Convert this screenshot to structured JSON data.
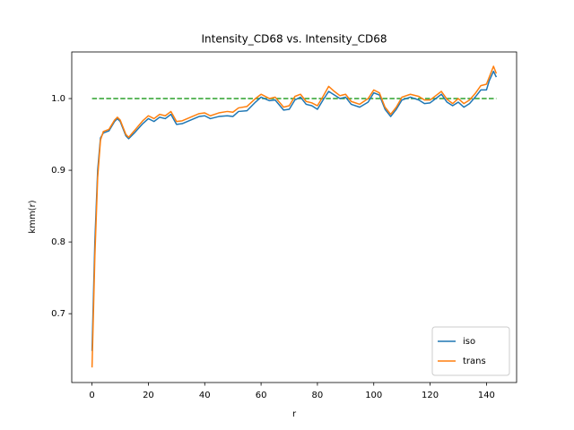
{
  "chart_data": {
    "type": "line",
    "title": "Intensity_CD68 vs. Intensity_CD68",
    "x_label": "r",
    "y_label": "kmm(r)",
    "x": [
      0,
      1,
      2,
      3,
      4,
      6,
      8,
      9,
      10,
      12,
      13,
      15,
      18,
      20,
      22,
      24,
      26,
      28,
      30,
      32,
      35,
      38,
      40,
      42,
      45,
      48,
      50,
      52,
      55,
      58,
      60,
      63,
      65,
      68,
      70,
      72,
      74,
      76,
      78,
      80,
      82,
      84,
      86,
      88,
      90,
      92,
      95,
      98,
      100,
      102,
      104,
      106,
      108,
      110,
      113,
      116,
      118,
      120,
      122,
      124,
      126,
      128,
      130,
      132,
      134,
      136,
      138,
      140,
      141,
      142.5,
      143.5
    ],
    "series": [
      {
        "name": "iso",
        "color": "#1f77b4",
        "values": [
          0.648,
          0.8,
          0.9,
          0.945,
          0.952,
          0.955,
          0.968,
          0.972,
          0.968,
          0.948,
          0.944,
          0.952,
          0.965,
          0.972,
          0.968,
          0.974,
          0.972,
          0.978,
          0.964,
          0.965,
          0.97,
          0.975,
          0.976,
          0.972,
          0.975,
          0.976,
          0.975,
          0.982,
          0.983,
          0.995,
          1.002,
          0.997,
          0.998,
          0.984,
          0.985,
          0.998,
          1.002,
          0.992,
          0.99,
          0.985,
          0.998,
          1.01,
          1.005,
          1.0,
          1.002,
          0.992,
          0.988,
          0.995,
          1.008,
          1.005,
          0.985,
          0.975,
          0.985,
          0.998,
          1.002,
          0.998,
          0.993,
          0.994,
          1.0,
          1.006,
          0.995,
          0.99,
          0.995,
          0.988,
          0.993,
          1.002,
          1.012,
          1.012,
          1.025,
          1.038,
          1.03
        ]
      },
      {
        "name": "trans",
        "color": "#ff7f0e",
        "values": [
          0.625,
          0.78,
          0.89,
          0.942,
          0.954,
          0.957,
          0.97,
          0.974,
          0.97,
          0.95,
          0.946,
          0.955,
          0.969,
          0.976,
          0.972,
          0.978,
          0.976,
          0.982,
          0.968,
          0.969,
          0.974,
          0.979,
          0.98,
          0.976,
          0.98,
          0.982,
          0.981,
          0.987,
          0.989,
          1.0,
          1.006,
          1.0,
          1.002,
          0.988,
          0.99,
          1.003,
          1.006,
          0.996,
          0.994,
          0.99,
          1.003,
          1.017,
          1.01,
          1.004,
          1.006,
          0.996,
          0.992,
          1.0,
          1.012,
          1.008,
          0.988,
          0.978,
          0.988,
          1.002,
          1.006,
          1.003,
          0.998,
          0.998,
          1.004,
          1.01,
          0.999,
          0.993,
          1.0,
          0.993,
          0.998,
          1.007,
          1.018,
          1.02,
          1.03,
          1.045,
          1.035
        ]
      }
    ],
    "reference": {
      "x": [
        0,
        143.5
      ],
      "values": [
        1,
        1
      ],
      "color": "#2ca02c",
      "dashed": true
    },
    "xlim": [
      -7.2,
      150.7
    ],
    "xticks": [
      0,
      20,
      40,
      60,
      80,
      100,
      120,
      140
    ],
    "ylim": [
      0.604,
      1.065
    ],
    "yticks": [
      0.7,
      0.8,
      0.9,
      {
        "value": 1,
        "label": "1.0"
      }
    ],
    "legend": "lower right"
  }
}
